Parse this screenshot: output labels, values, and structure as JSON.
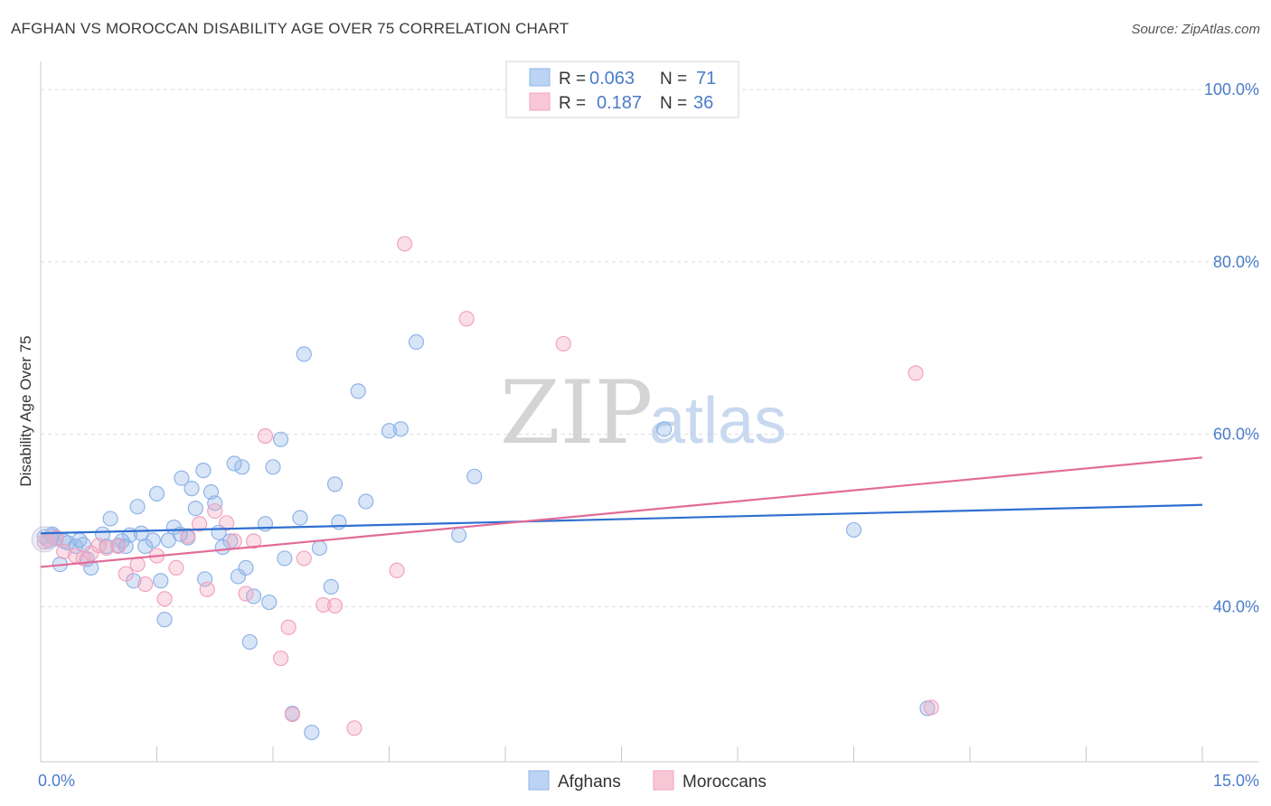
{
  "title": "AFGHAN VS MOROCCAN DISABILITY AGE OVER 75 CORRELATION CHART",
  "source": "Source: ZipAtlas.com",
  "watermark": {
    "zip": "ZIP",
    "atlas": "atlas"
  },
  "chart_data": {
    "type": "scatter",
    "title": "AFGHAN VS MOROCCAN DISABILITY AGE OVER 75 CORRELATION CHART",
    "xlabel": "",
    "ylabel": "Disability Age Over 75",
    "xlim": [
      0,
      15
    ],
    "ylim": [
      22,
      102
    ],
    "x_tick_labels": [
      {
        "value": 0,
        "label": "0.0%"
      },
      {
        "value": 15,
        "label": "15.0%"
      }
    ],
    "y_tick_labels": [
      {
        "value": 40,
        "label": "40.0%"
      },
      {
        "value": 60,
        "label": "60.0%"
      },
      {
        "value": 80,
        "label": "80.0%"
      },
      {
        "value": 100,
        "label": "100.0%"
      }
    ],
    "grid": true,
    "legend_position": "top-center",
    "legend": [
      {
        "name": "Afghans",
        "color": "#8fb4e8",
        "R_label": "R =",
        "R": "0.063",
        "N_label": "N =",
        "N": "71"
      },
      {
        "name": "Moroccans",
        "color": "#f2a3bd",
        "R_label": "R =",
        "R": "0.187",
        "N_label": "N =",
        "N": "36"
      }
    ],
    "series": [
      {
        "name": "Afghans",
        "color": "#8fb4e8",
        "line_color": "#2f6fd0",
        "trend": {
          "x": [
            0,
            15
          ],
          "y": [
            48.5,
            51.8
          ]
        },
        "points": [
          [
            0.05,
            48.1
          ],
          [
            0.1,
            47.6
          ],
          [
            0.15,
            48.4
          ],
          [
            0.2,
            47.9
          ],
          [
            0.25,
            44.9
          ],
          [
            0.3,
            47.6
          ],
          [
            0.35,
            47.4
          ],
          [
            0.45,
            47.0
          ],
          [
            0.5,
            47.7
          ],
          [
            0.6,
            45.5
          ],
          [
            0.65,
            44.5
          ],
          [
            0.8,
            48.4
          ],
          [
            0.85,
            47.0
          ],
          [
            0.9,
            50.2
          ],
          [
            1.0,
            47.1
          ],
          [
            1.05,
            47.6
          ],
          [
            1.1,
            47.0
          ],
          [
            1.15,
            48.3
          ],
          [
            1.2,
            43.0
          ],
          [
            1.25,
            51.6
          ],
          [
            1.3,
            48.5
          ],
          [
            1.35,
            47.0
          ],
          [
            1.45,
            47.7
          ],
          [
            1.5,
            53.1
          ],
          [
            1.55,
            43.0
          ],
          [
            1.6,
            38.5
          ],
          [
            1.65,
            47.7
          ],
          [
            1.72,
            49.2
          ],
          [
            1.8,
            48.4
          ],
          [
            1.82,
            54.9
          ],
          [
            1.9,
            48.0
          ],
          [
            1.95,
            53.7
          ],
          [
            2.0,
            51.4
          ],
          [
            2.1,
            55.8
          ],
          [
            2.12,
            43.2
          ],
          [
            2.2,
            53.3
          ],
          [
            2.25,
            52.0
          ],
          [
            2.3,
            48.6
          ],
          [
            2.35,
            46.9
          ],
          [
            2.45,
            47.6
          ],
          [
            2.5,
            56.6
          ],
          [
            2.55,
            43.5
          ],
          [
            2.6,
            56.2
          ],
          [
            2.65,
            44.5
          ],
          [
            2.7,
            35.9
          ],
          [
            2.75,
            41.2
          ],
          [
            2.9,
            49.6
          ],
          [
            2.95,
            40.5
          ],
          [
            3.0,
            56.2
          ],
          [
            3.1,
            59.4
          ],
          [
            3.15,
            45.6
          ],
          [
            3.25,
            27.6
          ],
          [
            3.35,
            50.3
          ],
          [
            3.4,
            69.3
          ],
          [
            3.5,
            25.4
          ],
          [
            3.6,
            46.8
          ],
          [
            3.75,
            42.3
          ],
          [
            3.8,
            54.2
          ],
          [
            3.85,
            49.8
          ],
          [
            4.1,
            65.0
          ],
          [
            4.2,
            52.2
          ],
          [
            4.5,
            60.4
          ],
          [
            4.65,
            60.6
          ],
          [
            4.85,
            70.7
          ],
          [
            5.4,
            48.3
          ],
          [
            5.6,
            55.1
          ],
          [
            8.05,
            60.6
          ],
          [
            10.5,
            48.9
          ],
          [
            11.45,
            28.2
          ],
          [
            0.15,
            48.2
          ],
          [
            0.55,
            47.2
          ]
        ]
      },
      {
        "name": "Moroccans",
        "color": "#f2a3bd",
        "line_color": "#e26b98",
        "trend": {
          "x": [
            0,
            15
          ],
          "y": [
            44.6,
            57.3
          ]
        },
        "points": [
          [
            0.05,
            47.5
          ],
          [
            0.1,
            47.8
          ],
          [
            0.2,
            48.0
          ],
          [
            0.3,
            46.4
          ],
          [
            0.45,
            45.9
          ],
          [
            0.55,
            45.6
          ],
          [
            0.65,
            46.2
          ],
          [
            0.75,
            47.1
          ],
          [
            0.85,
            46.8
          ],
          [
            1.0,
            47.0
          ],
          [
            1.1,
            43.8
          ],
          [
            1.25,
            44.9
          ],
          [
            1.35,
            42.6
          ],
          [
            1.5,
            45.9
          ],
          [
            1.6,
            40.9
          ],
          [
            1.75,
            44.5
          ],
          [
            1.9,
            48.2
          ],
          [
            2.05,
            49.6
          ],
          [
            2.15,
            42.0
          ],
          [
            2.25,
            51.1
          ],
          [
            2.4,
            49.7
          ],
          [
            2.5,
            47.6
          ],
          [
            2.65,
            41.5
          ],
          [
            2.75,
            47.6
          ],
          [
            2.9,
            59.8
          ],
          [
            3.1,
            34.0
          ],
          [
            3.2,
            37.6
          ],
          [
            3.25,
            27.5
          ],
          [
            3.4,
            45.6
          ],
          [
            3.65,
            40.2
          ],
          [
            3.8,
            40.1
          ],
          [
            4.05,
            25.9
          ],
          [
            4.6,
            44.2
          ],
          [
            4.7,
            82.1
          ],
          [
            5.5,
            73.4
          ],
          [
            6.75,
            70.5
          ]
        ]
      }
    ],
    "extra_points": {
      "Moroccans": [
        [
          11.3,
          67.1
        ],
        [
          11.5,
          28.3
        ]
      ]
    }
  },
  "axis_labels": {
    "y_title": "Disability Age Over 75",
    "x_left": "0.0%",
    "x_right": "15.0%"
  }
}
